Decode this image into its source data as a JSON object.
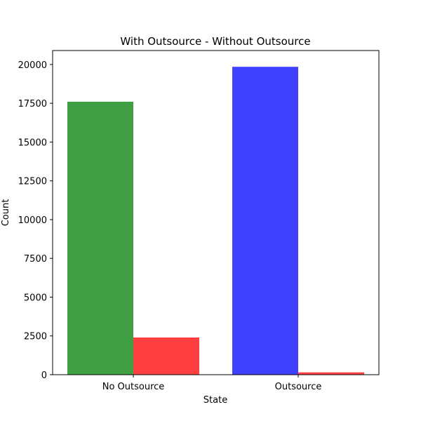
{
  "chart_data": {
    "type": "bar",
    "title": "With Outsource - Without Outsource",
    "xlabel": "State",
    "ylabel": "Count",
    "categories": [
      "No Outsource",
      "Outsource"
    ],
    "ylim": [
      0,
      20900
    ],
    "yticks": [
      0,
      2500,
      5000,
      7500,
      10000,
      12500,
      15000,
      17500,
      20000
    ],
    "grid": false,
    "legend": "none",
    "bars": [
      {
        "category": "No Outsource",
        "position": "left",
        "value": 17600,
        "color": "#2e9630"
      },
      {
        "category": "No Outsource",
        "position": "right",
        "value": 2400,
        "color": "#ff2b2b"
      },
      {
        "category": "Outsource",
        "position": "left",
        "value": 19850,
        "color": "#2b2bff"
      },
      {
        "category": "Outsource",
        "position": "right",
        "value": 150,
        "color": "#ff2b2b"
      }
    ],
    "bar_opacity": 0.9
  }
}
